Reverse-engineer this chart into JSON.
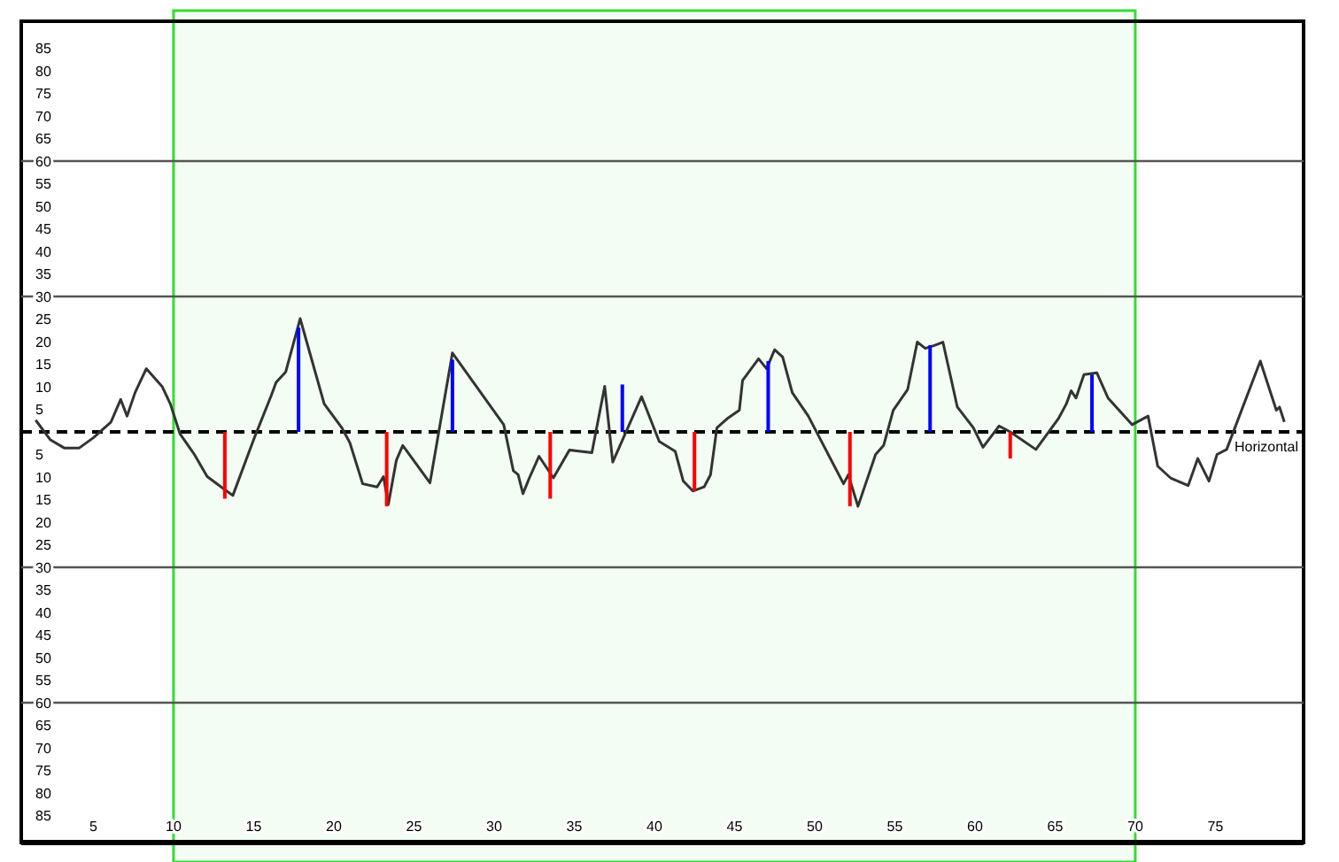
{
  "chart_data": {
    "type": "line",
    "xlim": [
      0.5,
      80.5
    ],
    "ylim": [
      -91,
      91
    ],
    "xticks": [
      5,
      10,
      15,
      20,
      25,
      30,
      35,
      40,
      45,
      50,
      55,
      60,
      65,
      70,
      75
    ],
    "yticks": [
      {
        "value": 85,
        "label": "85"
      },
      {
        "value": 80,
        "label": "80"
      },
      {
        "value": 75,
        "label": "75"
      },
      {
        "value": 70,
        "label": "70"
      },
      {
        "value": 65,
        "label": "65"
      },
      {
        "value": 60,
        "label": "60"
      },
      {
        "value": 55,
        "label": "55"
      },
      {
        "value": 50,
        "label": "50"
      },
      {
        "value": 45,
        "label": "45"
      },
      {
        "value": 40,
        "label": "40"
      },
      {
        "value": 35,
        "label": "35"
      },
      {
        "value": 30,
        "label": "30"
      },
      {
        "value": 25,
        "label": "25"
      },
      {
        "value": 20,
        "label": "20"
      },
      {
        "value": 15,
        "label": "15"
      },
      {
        "value": 10,
        "label": "10"
      },
      {
        "value": 5,
        "label": "5"
      },
      {
        "value": -5,
        "label": "5"
      },
      {
        "value": -10,
        "label": "10"
      },
      {
        "value": -15,
        "label": "15"
      },
      {
        "value": -20,
        "label": "20"
      },
      {
        "value": -25,
        "label": "25"
      },
      {
        "value": -30,
        "label": "30"
      },
      {
        "value": -35,
        "label": "35"
      },
      {
        "value": -40,
        "label": "40"
      },
      {
        "value": -45,
        "label": "45"
      },
      {
        "value": -50,
        "label": "50"
      },
      {
        "value": -55,
        "label": "55"
      },
      {
        "value": -60,
        "label": "60"
      },
      {
        "value": -65,
        "label": "65"
      },
      {
        "value": -70,
        "label": "70"
      },
      {
        "value": -75,
        "label": "75"
      },
      {
        "value": -80,
        "label": "80"
      },
      {
        "value": -85,
        "label": "85"
      }
    ],
    "series": [
      {
        "color": "#333333",
        "x": [
          1.4,
          2.3,
          3.2,
          4.1,
          5.0,
          6.1,
          6.7,
          7.1,
          7.6,
          8.3,
          9.3,
          9.8,
          10.4,
          11.3,
          12.1,
          13.7,
          15.0,
          16.1,
          16.4,
          17.0,
          17.9,
          19.4,
          20.5,
          21.0,
          21.8,
          22.7,
          23.1,
          23.4,
          23.9,
          24.3,
          26.0,
          27.4,
          30.6,
          31.2,
          31.5,
          31.8,
          32.2,
          32.8,
          33.7,
          34.7,
          36.1,
          36.9,
          37.4,
          39.2,
          40.3,
          41.3,
          41.8,
          42.4,
          43.1,
          43.5,
          43.9,
          44.6,
          45.3,
          45.5,
          46.5,
          47.0,
          47.5,
          48.0,
          48.6,
          49.6,
          51.8,
          52.1,
          52.7,
          53.8,
          54.3,
          54.9,
          55.8,
          56.4,
          56.9,
          57.5,
          58.0,
          58.9,
          59.9,
          60.5,
          61.5,
          62.2,
          63.8,
          65.2,
          65.7,
          66.0,
          66.3,
          66.8,
          67.6,
          68.3,
          69.8,
          70.8,
          71.4,
          72.2,
          73.3,
          73.9,
          74.6,
          75.1,
          75.7,
          77.8,
          78.8,
          79.0,
          79.3
        ],
        "values": [
          2.6,
          -1.7,
          -3.6,
          -3.6,
          -1.3,
          2.2,
          7.2,
          3.5,
          8.7,
          14,
          10,
          6.2,
          -0.4,
          -5,
          -9.9,
          -14.1,
          -1.7,
          8.1,
          11,
          13.3,
          25.1,
          6.2,
          0.9,
          -2.4,
          -11.5,
          -12.2,
          -9.9,
          -16.1,
          -6.3,
          -3,
          -11.3,
          17.5,
          1.6,
          -8.6,
          -9.5,
          -13.7,
          -10.2,
          -5.4,
          -10.2,
          -4,
          -4.6,
          10.1,
          -6.7,
          7.8,
          -2.1,
          -4.3,
          -10.9,
          -13.1,
          -12.2,
          -9.5,
          0.9,
          3.1,
          4.8,
          11.4,
          16.2,
          14,
          18.2,
          16.6,
          8.7,
          3.5,
          -11.5,
          -9.5,
          -16.5,
          -5,
          -3,
          4.8,
          9.4,
          19.9,
          18.5,
          19.2,
          19.9,
          5.5,
          0.9,
          -3.4,
          1.3,
          0,
          -3.9,
          2.9,
          6.2,
          9.1,
          7.5,
          12.7,
          13.1,
          7.5,
          1.6,
          3.5,
          -7.6,
          -10.2,
          -11.9,
          -5.9,
          -10.9,
          -5,
          -3.9,
          15.7,
          4.8,
          5.5,
          2.2
        ]
      },
      {
        "type": "bar",
        "x": [
          13.2,
          17.8,
          23.3,
          27.4,
          33.5,
          38.0,
          42.5,
          47.1,
          52.2,
          57.2,
          62.2,
          67.3
        ],
        "values": [
          -14.8,
          23.1,
          -16.5,
          16,
          -14.8,
          10.5,
          -13.1,
          15.7,
          -16.5,
          19.2,
          -5.9,
          12.7
        ],
        "colors": [
          "#ff0000",
          "#0000ff",
          "#ff0000",
          "#0000ff",
          "#ff0000",
          "#0000ff",
          "#ff0000",
          "#0000ff",
          "#ff0000",
          "#0000ff",
          "#ff0000",
          "#0000ff"
        ]
      }
    ],
    "ref_lines": [
      {
        "axis": "y",
        "value": 60,
        "color": "#555555",
        "line_style": "solid"
      },
      {
        "axis": "y",
        "value": 30,
        "color": "#555555",
        "line_style": "solid"
      },
      {
        "axis": "y",
        "value": 0,
        "label": "Horizontal",
        "color": "#000000",
        "line_style": "dashed"
      },
      {
        "axis": "y",
        "value": -30,
        "color": "#555555",
        "line_style": "solid"
      },
      {
        "axis": "y",
        "value": -60,
        "color": "#555555",
        "line_style": "solid"
      }
    ],
    "bands": [
      {
        "axis": "x",
        "from": 10,
        "to": 70,
        "color": "#33dd33"
      }
    ],
    "grid": false
  }
}
